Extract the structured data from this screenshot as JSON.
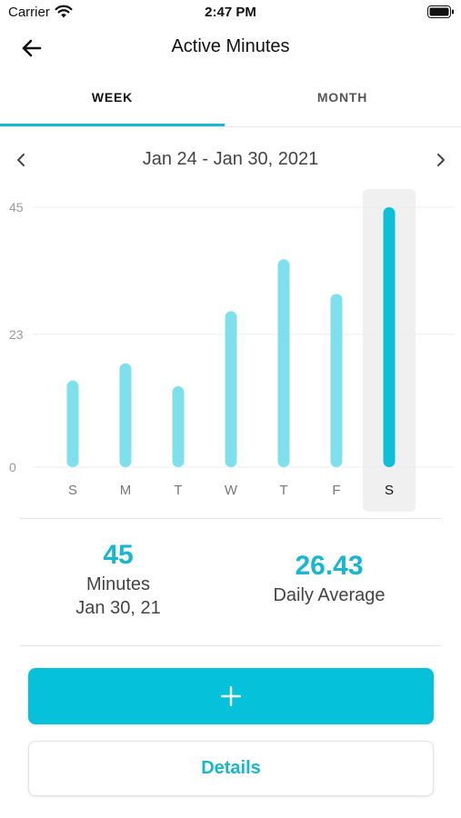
{
  "status_bar": {
    "carrier": "Carrier",
    "time": "2:47 PM",
    "wifi_icon": "wifi-icon",
    "battery_icon": "battery-icon"
  },
  "nav": {
    "title": "Active Minutes",
    "back_icon": "arrow-left-icon"
  },
  "tabs": [
    {
      "label": "WEEK",
      "selected": true
    },
    {
      "label": "MONTH",
      "selected": false
    }
  ],
  "date_range": {
    "label": "Jan 24 - Jan 30, 2021",
    "prev_icon": "chevron-left-icon",
    "next_icon": "chevron-right-icon"
  },
  "colors": {
    "accent": "#06c1da",
    "bar_light": "#7ee0ec",
    "bar_selected": "#0fbfd7",
    "selection_bg": "#f0f0f0"
  },
  "chart_data": {
    "type": "bar",
    "categories": [
      "S",
      "M",
      "T",
      "W",
      "T",
      "F",
      "S"
    ],
    "values": [
      15,
      18,
      14,
      27,
      36,
      30,
      45
    ],
    "selected_index": 6,
    "y_ticks": [
      "45",
      "23",
      "0"
    ],
    "ylim": [
      0,
      45
    ],
    "grid": true
  },
  "stats": {
    "selected_value": "45",
    "selected_unit": "Minutes",
    "selected_date": "Jan 30, 21",
    "average_value": "26.43",
    "average_label": "Daily Average"
  },
  "actions": {
    "add_icon": "plus-icon",
    "details_label": "Details"
  }
}
